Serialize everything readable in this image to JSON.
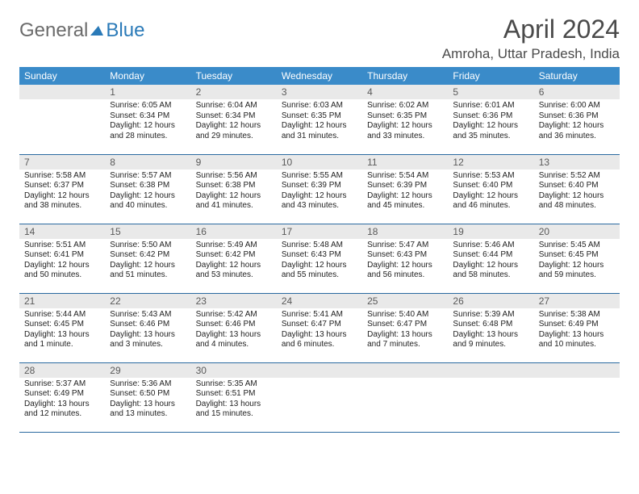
{
  "brand": {
    "part1": "General",
    "part2": "Blue"
  },
  "title": "April 2024",
  "location": "Amroha, Uttar Pradesh, India",
  "colors": {
    "header_bg": "#3a8bc9",
    "header_text": "#ffffff",
    "daynum_bg": "#e9e9e9",
    "daynum_text": "#5a5a5a",
    "body_text": "#222222",
    "rule": "#2a6aa0",
    "brand_gray": "#6b6b6b",
    "brand_blue": "#2a7ab8"
  },
  "weekdays": [
    "Sunday",
    "Monday",
    "Tuesday",
    "Wednesday",
    "Thursday",
    "Friday",
    "Saturday"
  ],
  "weeks": [
    [
      null,
      {
        "n": "1",
        "sr": "Sunrise: 6:05 AM",
        "ss": "Sunset: 6:34 PM",
        "d1": "Daylight: 12 hours",
        "d2": "and 28 minutes."
      },
      {
        "n": "2",
        "sr": "Sunrise: 6:04 AM",
        "ss": "Sunset: 6:34 PM",
        "d1": "Daylight: 12 hours",
        "d2": "and 29 minutes."
      },
      {
        "n": "3",
        "sr": "Sunrise: 6:03 AM",
        "ss": "Sunset: 6:35 PM",
        "d1": "Daylight: 12 hours",
        "d2": "and 31 minutes."
      },
      {
        "n": "4",
        "sr": "Sunrise: 6:02 AM",
        "ss": "Sunset: 6:35 PM",
        "d1": "Daylight: 12 hours",
        "d2": "and 33 minutes."
      },
      {
        "n": "5",
        "sr": "Sunrise: 6:01 AM",
        "ss": "Sunset: 6:36 PM",
        "d1": "Daylight: 12 hours",
        "d2": "and 35 minutes."
      },
      {
        "n": "6",
        "sr": "Sunrise: 6:00 AM",
        "ss": "Sunset: 6:36 PM",
        "d1": "Daylight: 12 hours",
        "d2": "and 36 minutes."
      }
    ],
    [
      {
        "n": "7",
        "sr": "Sunrise: 5:58 AM",
        "ss": "Sunset: 6:37 PM",
        "d1": "Daylight: 12 hours",
        "d2": "and 38 minutes."
      },
      {
        "n": "8",
        "sr": "Sunrise: 5:57 AM",
        "ss": "Sunset: 6:38 PM",
        "d1": "Daylight: 12 hours",
        "d2": "and 40 minutes."
      },
      {
        "n": "9",
        "sr": "Sunrise: 5:56 AM",
        "ss": "Sunset: 6:38 PM",
        "d1": "Daylight: 12 hours",
        "d2": "and 41 minutes."
      },
      {
        "n": "10",
        "sr": "Sunrise: 5:55 AM",
        "ss": "Sunset: 6:39 PM",
        "d1": "Daylight: 12 hours",
        "d2": "and 43 minutes."
      },
      {
        "n": "11",
        "sr": "Sunrise: 5:54 AM",
        "ss": "Sunset: 6:39 PM",
        "d1": "Daylight: 12 hours",
        "d2": "and 45 minutes."
      },
      {
        "n": "12",
        "sr": "Sunrise: 5:53 AM",
        "ss": "Sunset: 6:40 PM",
        "d1": "Daylight: 12 hours",
        "d2": "and 46 minutes."
      },
      {
        "n": "13",
        "sr": "Sunrise: 5:52 AM",
        "ss": "Sunset: 6:40 PM",
        "d1": "Daylight: 12 hours",
        "d2": "and 48 minutes."
      }
    ],
    [
      {
        "n": "14",
        "sr": "Sunrise: 5:51 AM",
        "ss": "Sunset: 6:41 PM",
        "d1": "Daylight: 12 hours",
        "d2": "and 50 minutes."
      },
      {
        "n": "15",
        "sr": "Sunrise: 5:50 AM",
        "ss": "Sunset: 6:42 PM",
        "d1": "Daylight: 12 hours",
        "d2": "and 51 minutes."
      },
      {
        "n": "16",
        "sr": "Sunrise: 5:49 AM",
        "ss": "Sunset: 6:42 PM",
        "d1": "Daylight: 12 hours",
        "d2": "and 53 minutes."
      },
      {
        "n": "17",
        "sr": "Sunrise: 5:48 AM",
        "ss": "Sunset: 6:43 PM",
        "d1": "Daylight: 12 hours",
        "d2": "and 55 minutes."
      },
      {
        "n": "18",
        "sr": "Sunrise: 5:47 AM",
        "ss": "Sunset: 6:43 PM",
        "d1": "Daylight: 12 hours",
        "d2": "and 56 minutes."
      },
      {
        "n": "19",
        "sr": "Sunrise: 5:46 AM",
        "ss": "Sunset: 6:44 PM",
        "d1": "Daylight: 12 hours",
        "d2": "and 58 minutes."
      },
      {
        "n": "20",
        "sr": "Sunrise: 5:45 AM",
        "ss": "Sunset: 6:45 PM",
        "d1": "Daylight: 12 hours",
        "d2": "and 59 minutes."
      }
    ],
    [
      {
        "n": "21",
        "sr": "Sunrise: 5:44 AM",
        "ss": "Sunset: 6:45 PM",
        "d1": "Daylight: 13 hours",
        "d2": "and 1 minute."
      },
      {
        "n": "22",
        "sr": "Sunrise: 5:43 AM",
        "ss": "Sunset: 6:46 PM",
        "d1": "Daylight: 13 hours",
        "d2": "and 3 minutes."
      },
      {
        "n": "23",
        "sr": "Sunrise: 5:42 AM",
        "ss": "Sunset: 6:46 PM",
        "d1": "Daylight: 13 hours",
        "d2": "and 4 minutes."
      },
      {
        "n": "24",
        "sr": "Sunrise: 5:41 AM",
        "ss": "Sunset: 6:47 PM",
        "d1": "Daylight: 13 hours",
        "d2": "and 6 minutes."
      },
      {
        "n": "25",
        "sr": "Sunrise: 5:40 AM",
        "ss": "Sunset: 6:47 PM",
        "d1": "Daylight: 13 hours",
        "d2": "and 7 minutes."
      },
      {
        "n": "26",
        "sr": "Sunrise: 5:39 AM",
        "ss": "Sunset: 6:48 PM",
        "d1": "Daylight: 13 hours",
        "d2": "and 9 minutes."
      },
      {
        "n": "27",
        "sr": "Sunrise: 5:38 AM",
        "ss": "Sunset: 6:49 PM",
        "d1": "Daylight: 13 hours",
        "d2": "and 10 minutes."
      }
    ],
    [
      {
        "n": "28",
        "sr": "Sunrise: 5:37 AM",
        "ss": "Sunset: 6:49 PM",
        "d1": "Daylight: 13 hours",
        "d2": "and 12 minutes."
      },
      {
        "n": "29",
        "sr": "Sunrise: 5:36 AM",
        "ss": "Sunset: 6:50 PM",
        "d1": "Daylight: 13 hours",
        "d2": "and 13 minutes."
      },
      {
        "n": "30",
        "sr": "Sunrise: 5:35 AM",
        "ss": "Sunset: 6:51 PM",
        "d1": "Daylight: 13 hours",
        "d2": "and 15 minutes."
      },
      null,
      null,
      null,
      null
    ]
  ]
}
